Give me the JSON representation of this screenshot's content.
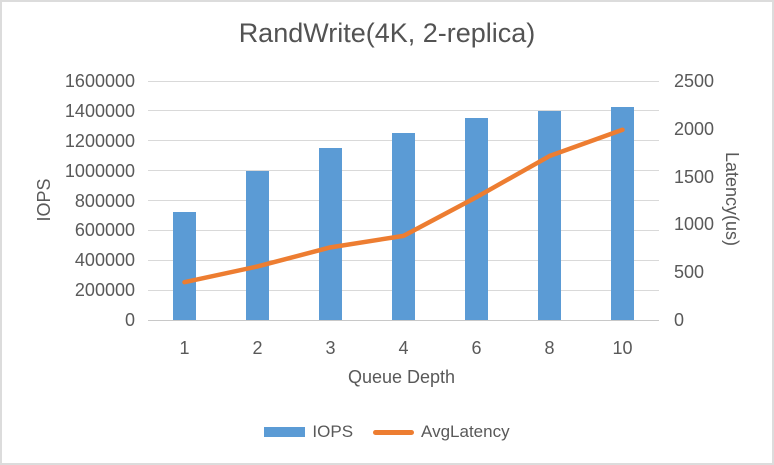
{
  "chart_data": {
    "type": "combo-bar-line",
    "title": "RandWrite(4K, 2-replica)",
    "categories": [
      "1",
      "2",
      "3",
      "4",
      "6",
      "8",
      "10"
    ],
    "series": [
      {
        "name": "IOPS",
        "type": "bar",
        "axis": "left",
        "color": "#5B9BD5",
        "values": [
          720000,
          1000000,
          1150000,
          1250000,
          1350000,
          1400000,
          1425000
        ]
      },
      {
        "name": "AvgLatency",
        "type": "line",
        "axis": "right",
        "color": "#ED7D31",
        "values": [
          395,
          560,
          760,
          880,
          1285,
          1715,
          1990
        ]
      }
    ],
    "x_axis": {
      "title": "Queue Depth",
      "tick_labels": [
        "1",
        "2",
        "3",
        "4",
        "6",
        "8",
        "10"
      ]
    },
    "y_axis_left": {
      "title": "IOPS",
      "min": 0,
      "max": 1600000,
      "step": 200000,
      "tick_labels": [
        "0",
        "200000",
        "400000",
        "600000",
        "800000",
        "1000000",
        "1200000",
        "1400000",
        "1600000"
      ]
    },
    "y_axis_right": {
      "title": "Latency(us)",
      "min": 0,
      "max": 2500,
      "step": 500,
      "tick_labels": [
        "0",
        "500",
        "1000",
        "1500",
        "2000",
        "2500"
      ]
    },
    "grid": true,
    "legend_position": "bottom",
    "styles": {
      "grid_color": "#D9D9D9",
      "axis_line_color": "#C8C8C8",
      "text_color": "#595959",
      "background": "#FFFFFF",
      "border_color": "#DCDCDC"
    }
  }
}
